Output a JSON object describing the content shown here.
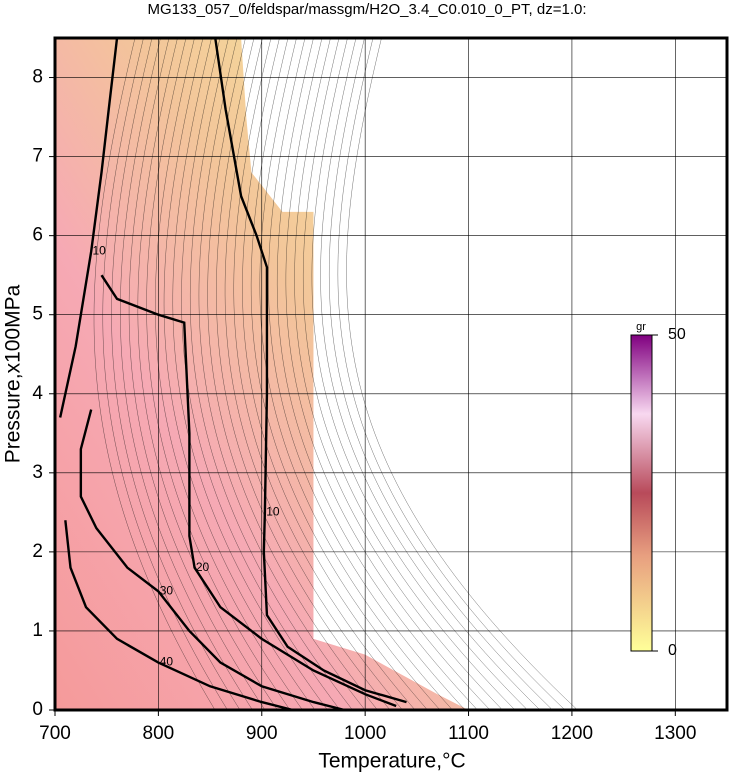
{
  "chart_data": {
    "type": "contour",
    "title": "MG133_057_0/feldspar/massgm/H2O_3.4_C0.010_0_PT, dz=1.0:",
    "x_label": "Temperature,°C",
    "y_label": "Pressure,x100MPa",
    "xlim": [
      700,
      1350
    ],
    "ylim": [
      0,
      8.5
    ],
    "xticks": [
      700,
      800,
      900,
      1000,
      1100,
      1200,
      1300
    ],
    "yticks": [
      0,
      1,
      2,
      3,
      4,
      5,
      6,
      7,
      8
    ],
    "grid": true,
    "domain": {
      "x": [
        700,
        880,
        885,
        890,
        920,
        950,
        950,
        1000,
        1070,
        1100,
        700
      ],
      "y": [
        8.5,
        8.5,
        7.5,
        6.8,
        6.3,
        6.3,
        0.9,
        0.7,
        0.2,
        0,
        0
      ]
    },
    "contours": [
      {
        "level": 10,
        "x": [
          760,
          752,
          745,
          735,
          720,
          705
        ],
        "y": [
          8.5,
          7.6,
          6.8,
          5.8,
          4.6,
          3.7
        ]
      },
      {
        "level": 10,
        "x": [
          855,
          865,
          880,
          895,
          905,
          905,
          903,
          902,
          905,
          925,
          960,
          1000,
          1040
        ],
        "y": [
          8.5,
          7.6,
          6.5,
          6.0,
          5.6,
          4.0,
          2.5,
          2.0,
          1.2,
          0.8,
          0.5,
          0.25,
          0.1
        ]
      },
      {
        "level": 20,
        "x": [
          745,
          760,
          800,
          825,
          830,
          830,
          835,
          860,
          900,
          950,
          1000,
          1030
        ],
        "y": [
          5.5,
          5.2,
          5.0,
          4.9,
          3.5,
          2.2,
          1.8,
          1.3,
          0.9,
          0.5,
          0.2,
          0.05
        ]
      },
      {
        "level": 30,
        "x": [
          735,
          725,
          725,
          740,
          770,
          800,
          830,
          860,
          900,
          950,
          980
        ],
        "y": [
          3.8,
          3.3,
          2.7,
          2.3,
          1.8,
          1.5,
          1.0,
          0.6,
          0.3,
          0.1,
          0
        ]
      },
      {
        "level": 40,
        "x": [
          710,
          715,
          730,
          760,
          800,
          850,
          900,
          930
        ],
        "y": [
          2.4,
          1.8,
          1.3,
          0.9,
          0.6,
          0.3,
          0.1,
          0
        ]
      }
    ],
    "colorbar": {
      "label": "gr",
      "lim": [
        0,
        50
      ],
      "ticks": [
        0,
        50
      ]
    }
  }
}
